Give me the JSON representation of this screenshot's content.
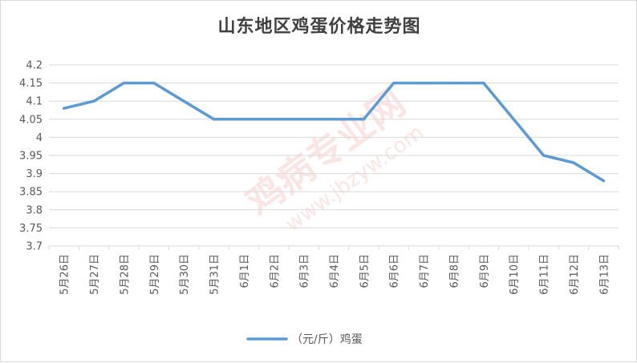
{
  "chart_data": {
    "type": "line",
    "title": "山东地区鸡蛋价格走势图",
    "categories": [
      "5月26日",
      "5月27日",
      "5月28日",
      "5月29日",
      "5月30日",
      "5月31日",
      "6月1日",
      "6月2日",
      "6月3日",
      "6月4日",
      "6月5日",
      "6月6日",
      "6月7日",
      "6月8日",
      "6月9日",
      "6月10日",
      "6月11日",
      "6月12日",
      "6月13日"
    ],
    "series": [
      {
        "name": "（元/斤）鸡蛋",
        "color": "#5b9bd5",
        "values": [
          4.08,
          4.1,
          4.15,
          4.15,
          4.1,
          4.05,
          4.05,
          4.05,
          4.05,
          4.05,
          4.05,
          4.15,
          4.15,
          4.15,
          4.15,
          4.05,
          3.95,
          3.93,
          3.88
        ]
      }
    ],
    "ylim": [
      3.7,
      4.2
    ],
    "yticks": [
      "3.7",
      "3.75",
      "3.8",
      "3.85",
      "3.9",
      "3.95",
      "4",
      "4.05",
      "4.1",
      "4.15",
      "4.2"
    ],
    "grid": true,
    "legend_position": "bottom",
    "watermark": "鸡病专业网 www.jbzyw.com"
  }
}
